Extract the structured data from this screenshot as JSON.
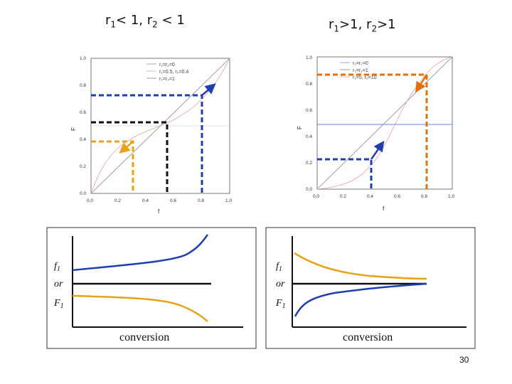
{
  "titles": {
    "left": {
      "r1": "r",
      "r1_sub": "1",
      "r1_rel": "< 1,",
      "r2": "r",
      "r2_sub": "2",
      "r2_rel": " < 1"
    },
    "right": {
      "r1": "r",
      "r1_sub": "1",
      "r1_rel": ">1,",
      "r2": "r",
      "r2_sub": "2",
      "r2_rel": ">1"
    }
  },
  "left_plot": {
    "y_ticks": [
      "0.0",
      "0.2",
      "0.4",
      "0.6",
      "0.8",
      "1.0"
    ],
    "x_ticks": [
      "0.0",
      "0.2",
      "0.4",
      "0.6",
      "0.8",
      "1.0"
    ],
    "xlabel": "f",
    "ylabel": "F",
    "legend": [
      "r₁=r₂=0",
      "r₁=0.5, r₂=0.4",
      "r₁=r₂=1"
    ]
  },
  "right_plot": {
    "y_ticks": [
      "0.0",
      "0.2",
      "0.4",
      "0.6",
      "0.8",
      "1.0"
    ],
    "x_ticks": [
      "0.0",
      "0.2",
      "0.4",
      "0.6",
      "0.8",
      "1.0"
    ],
    "xlabel": "f",
    "ylabel": "F",
    "legend": [
      "r₁=r₂=0",
      "r₁=r₂=1",
      "r₁=5, r₂=10"
    ]
  },
  "schematics": {
    "left": {
      "ylabel_1": "f",
      "ylabel_1_sub": "1",
      "ylabel_or": "or",
      "ylabel_2": "F",
      "ylabel_2_sub": "1",
      "xlabel": "conversion"
    },
    "right": {
      "ylabel_1": "f",
      "ylabel_1_sub": "1",
      "ylabel_or": "or",
      "ylabel_2": "F",
      "ylabel_2_sub": "1",
      "xlabel": "conversion"
    }
  },
  "page_number": "30",
  "colors": {
    "blue": "#1f3fae",
    "orange": "#e8a21a",
    "dark_orange": "#e07010",
    "black": "#111111"
  }
}
